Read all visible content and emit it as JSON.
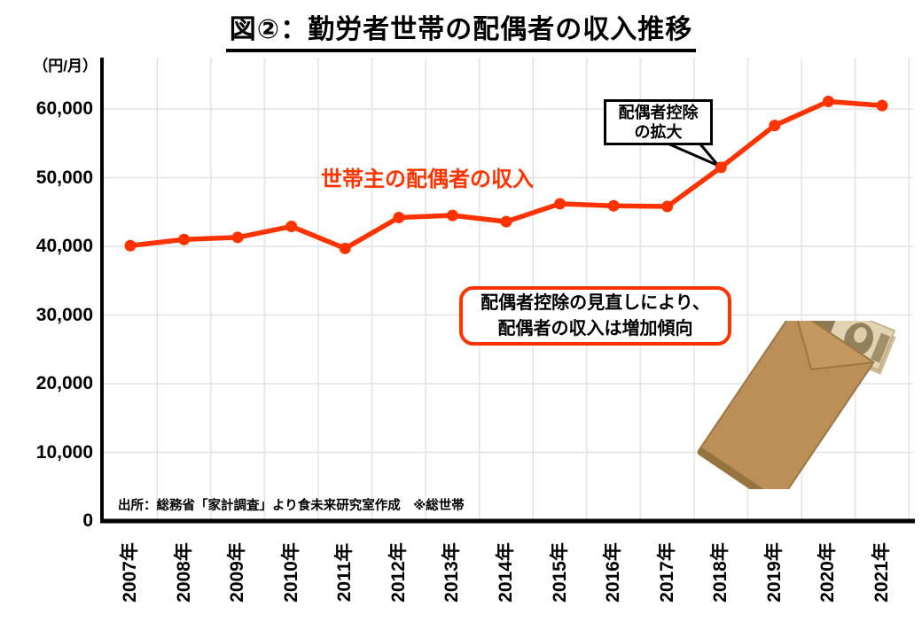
{
  "title": "図②：勤労者世帯の配偶者の収入推移",
  "y_axis": {
    "unit": "（円/月）",
    "tick_labels": [
      "0",
      "10,000",
      "20,000",
      "30,000",
      "40,000",
      "50,000",
      "60,000"
    ]
  },
  "series_label": "世帯主の配偶者の収入",
  "callout": {
    "line1": "配偶者控除",
    "line2": "の拡大"
  },
  "note_box": {
    "line1": "配偶者控除の見直しにより、",
    "line2": "配偶者の収入は増加傾向"
  },
  "source": "出所：総務省「家計調査」より食未来研究室作成　※総世帯",
  "colors": {
    "line": "#ff3300",
    "grid": "#e4e4e4",
    "axis": "#000000",
    "note_border": "#ff3300",
    "callout_border": "#000000"
  },
  "chart_data": {
    "type": "line",
    "title": "図②：勤労者世帯の配偶者の収入推移",
    "x": [
      "2007年",
      "2008年",
      "2009年",
      "2010年",
      "2011年",
      "2012年",
      "2013年",
      "2014年",
      "2015年",
      "2016年",
      "2017年",
      "2018年",
      "2019年",
      "2020年",
      "2021年"
    ],
    "values": [
      40100,
      41000,
      41300,
      42900,
      39700,
      44200,
      44500,
      43600,
      46200,
      45900,
      45800,
      51500,
      57600,
      61100,
      60500
    ],
    "ylabel": "円/月",
    "ylim": [
      0,
      65000
    ],
    "y_ticks": [
      0,
      10000,
      20000,
      30000,
      40000,
      50000,
      60000
    ],
    "grid": true,
    "legend_position": "none",
    "annotations": [
      "配偶者控除の拡大（2018年の点への吹き出し）",
      "配偶者控除の見直しにより、配偶者の収入は増加傾向"
    ]
  }
}
